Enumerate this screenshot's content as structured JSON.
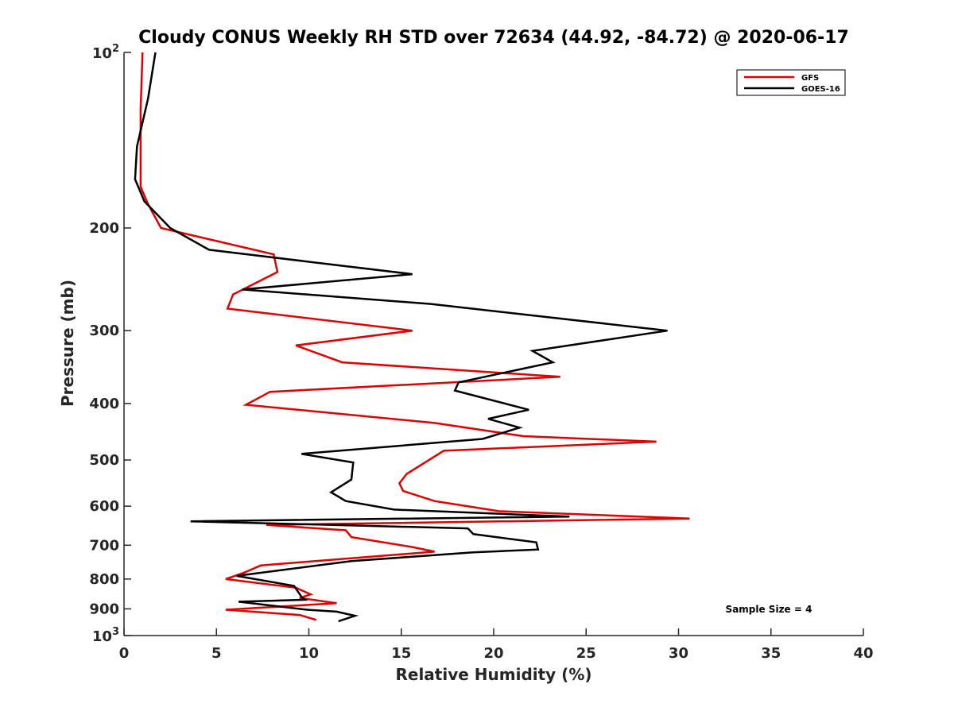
{
  "chart_data": {
    "type": "line",
    "title": "Cloudy CONUS Weekly RH STD over 72634 (44.92, -84.72) @ 2020-06-17",
    "xlabel": "Relative Humidity (%)",
    "ylabel": "Pressure (mb)",
    "xlim": [
      0,
      40
    ],
    "ylim": [
      100,
      1000
    ],
    "y_scale": "log",
    "y_reversed": true,
    "grid": false,
    "legend_position": "top-right",
    "x_ticks": [
      "0",
      "5",
      "10",
      "15",
      "20",
      "25",
      "30",
      "35",
      "40"
    ],
    "x_tick_values": [
      0,
      5,
      10,
      15,
      20,
      25,
      30,
      35,
      40
    ],
    "y_ticks": [
      {
        "value": 100,
        "base": "10",
        "exp": "2"
      },
      {
        "value": 200,
        "base": "200",
        "exp": ""
      },
      {
        "value": 300,
        "base": "300",
        "exp": ""
      },
      {
        "value": 400,
        "base": "400",
        "exp": ""
      },
      {
        "value": 500,
        "base": "500",
        "exp": ""
      },
      {
        "value": 600,
        "base": "600",
        "exp": ""
      },
      {
        "value": 700,
        "base": "700",
        "exp": ""
      },
      {
        "value": 800,
        "base": "800",
        "exp": ""
      },
      {
        "value": 900,
        "base": "900",
        "exp": ""
      },
      {
        "value": 1000,
        "base": "10",
        "exp": "3"
      }
    ],
    "annotation": "Sample Size = 4",
    "series": [
      {
        "name": "GFS",
        "color": "#e00000",
        "points": [
          [
            1.0,
            100
          ],
          [
            0.9,
            125
          ],
          [
            0.9,
            150
          ],
          [
            0.9,
            170
          ],
          [
            1.3,
            182
          ],
          [
            2.0,
            200
          ],
          [
            8.1,
            222
          ],
          [
            8.3,
            238
          ],
          [
            5.9,
            260
          ],
          [
            5.6,
            275
          ],
          [
            15.6,
            300
          ],
          [
            9.3,
            318
          ],
          [
            11.8,
            340
          ],
          [
            23.6,
            360
          ],
          [
            7.9,
            382
          ],
          [
            6.6,
            402
          ],
          [
            16.8,
            432
          ],
          [
            21.6,
            455
          ],
          [
            28.8,
            465
          ],
          [
            17.3,
            482
          ],
          [
            15.3,
            528
          ],
          [
            14.9,
            548
          ],
          [
            15.1,
            565
          ],
          [
            16.8,
            588
          ],
          [
            20.3,
            612
          ],
          [
            30.6,
            630
          ],
          [
            7.7,
            646
          ],
          [
            12.0,
            660
          ],
          [
            12.3,
            678
          ],
          [
            15.6,
            705
          ],
          [
            16.8,
            718
          ],
          [
            7.4,
            758
          ],
          [
            6.5,
            780
          ],
          [
            5.5,
            800
          ],
          [
            9.3,
            828
          ],
          [
            10.1,
            850
          ],
          [
            9.5,
            862
          ],
          [
            11.5,
            880
          ],
          [
            5.5,
            903
          ],
          [
            9.5,
            922
          ],
          [
            10.4,
            940
          ]
        ]
      },
      {
        "name": "GOES-16",
        "color": "#000000",
        "points": [
          [
            1.7,
            100
          ],
          [
            1.3,
            120
          ],
          [
            0.7,
            145
          ],
          [
            0.6,
            165
          ],
          [
            1.1,
            180
          ],
          [
            2.5,
            200
          ],
          [
            4.6,
            218
          ],
          [
            15.6,
            240
          ],
          [
            6.4,
            255
          ],
          [
            16.6,
            270
          ],
          [
            29.4,
            300
          ],
          [
            22.1,
            325
          ],
          [
            23.2,
            340
          ],
          [
            18.1,
            368
          ],
          [
            17.9,
            380
          ],
          [
            21.9,
            410
          ],
          [
            19.7,
            425
          ],
          [
            21.4,
            440
          ],
          [
            19.4,
            460
          ],
          [
            9.6,
            488
          ],
          [
            12.4,
            505
          ],
          [
            12.3,
            540
          ],
          [
            11.2,
            568
          ],
          [
            12.0,
            588
          ],
          [
            14.6,
            608
          ],
          [
            24.1,
            625
          ],
          [
            3.6,
            637
          ],
          [
            18.6,
            655
          ],
          [
            18.9,
            670
          ],
          [
            22.3,
            692
          ],
          [
            22.4,
            712
          ],
          [
            18.9,
            720
          ],
          [
            12.3,
            745
          ],
          [
            6.1,
            790
          ],
          [
            9.2,
            822
          ],
          [
            9.6,
            858
          ],
          [
            9.8,
            868
          ],
          [
            6.2,
            875
          ],
          [
            9.9,
            903
          ],
          [
            11.5,
            910
          ],
          [
            12.5,
            925
          ],
          [
            11.6,
            945
          ]
        ]
      }
    ]
  }
}
